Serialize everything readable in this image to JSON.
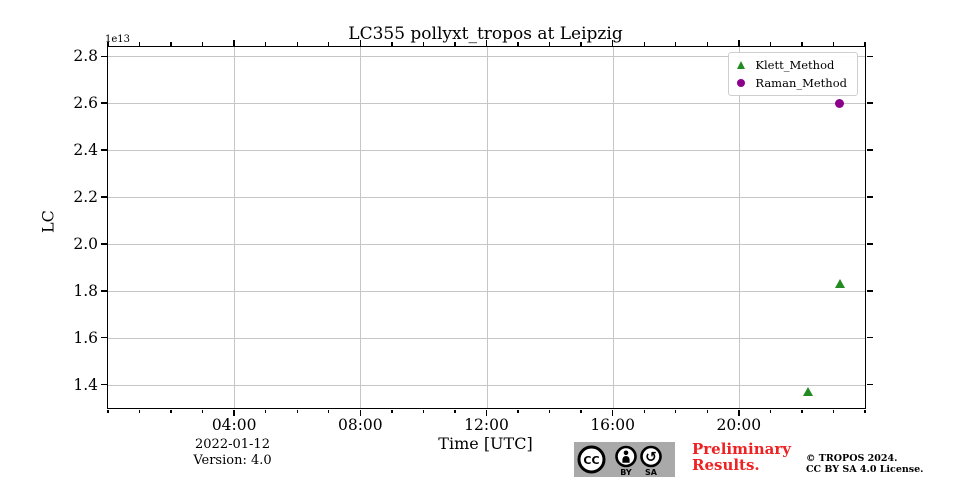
{
  "title": "LC355 pollyxt_tropos at Leipzig",
  "offset_label": "1e13",
  "axes": {
    "xlabel": "Time [UTC]",
    "ylabel": "LC"
  },
  "legend": [
    {
      "label": "Klett_Method",
      "marker": "triangle",
      "color": "#228B22"
    },
    {
      "label": "Raman_Method",
      "marker": "circle",
      "color": "#8B008B"
    }
  ],
  "colors": {
    "klett_green": "#228B22",
    "raman_purple": "#8B008B",
    "preliminary_red": "#ee2222",
    "grid_gray": "#c6c6c6"
  },
  "footer": {
    "date": "2022-01-12",
    "version": "Version: 4.0",
    "preliminary_line1": "Preliminary",
    "preliminary_line2": "Results.",
    "copyright_line1": "© TROPOS 2024.",
    "copyright_line2": "CC BY SA 4.0 License.",
    "cc_badge": {
      "cc": "CC",
      "by": "BY",
      "sa": "SA"
    }
  },
  "chart_data": {
    "type": "scatter",
    "title": "LC355 pollyxt_tropos at Leipzig",
    "xlabel": "Time [UTC]",
    "ylabel": "LC",
    "y_offset_factor": "1e13",
    "grid": true,
    "legend_position": "upper right",
    "xlim_hours": [
      0,
      24
    ],
    "ylim": [
      1.3,
      2.84
    ],
    "y_ticks": [
      1.4,
      1.6,
      1.8,
      2.0,
      2.2,
      2.4,
      2.6,
      2.8
    ],
    "x_major_ticks": [
      {
        "hour": 4,
        "label": "04:00"
      },
      {
        "hour": 8,
        "label": "08:00"
      },
      {
        "hour": 12,
        "label": "12:00"
      },
      {
        "hour": 16,
        "label": "16:00"
      },
      {
        "hour": 20,
        "label": "20:00"
      }
    ],
    "x_minor_tick_every_hours": 1,
    "series": [
      {
        "name": "Klett_Method",
        "marker": "triangle",
        "color": "#228B22",
        "points": [
          {
            "hour": 22.2,
            "lc_e13": 1.37
          },
          {
            "hour": 23.2,
            "lc_e13": 1.83
          }
        ]
      },
      {
        "name": "Raman_Method",
        "marker": "circle",
        "color": "#8B008B",
        "points": [
          {
            "hour": 23.2,
            "lc_e13": 2.6
          }
        ]
      }
    ]
  }
}
